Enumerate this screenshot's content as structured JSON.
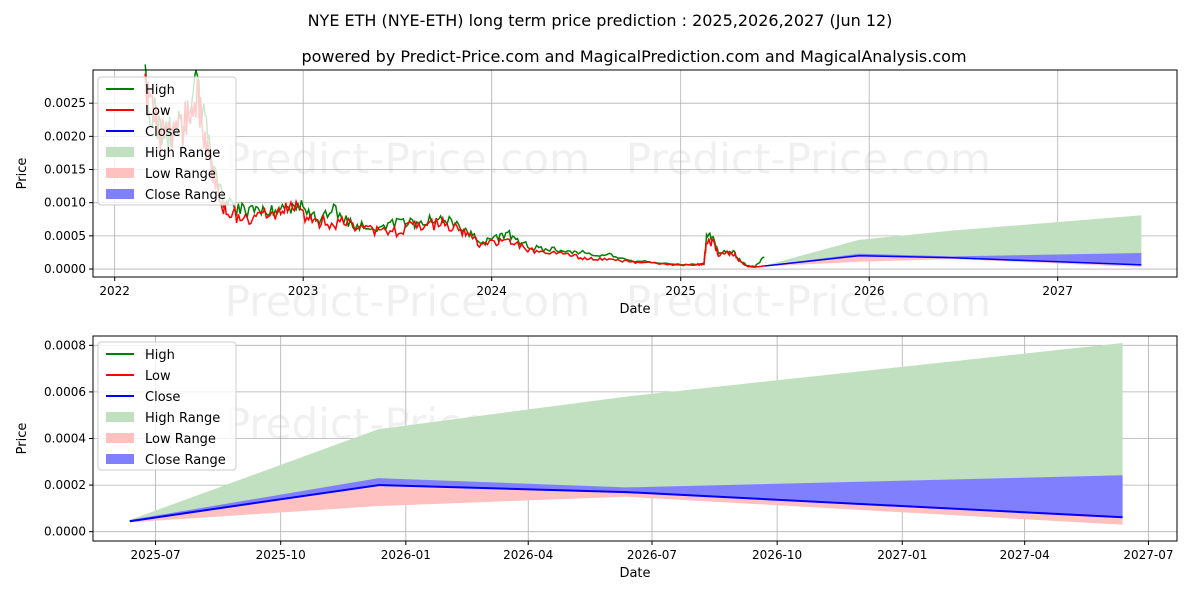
{
  "title": "NYE ETH (NYE-ETH) long term price prediction : 2025,2026,2027 (Jun 12)",
  "subtitle": "powered by Predict-Price.com and MagicalPrediction.com and MagicalAnalysis.com",
  "watermark": "Predict-Price.com",
  "colors": {
    "high": "#008000",
    "low": "#ff0000",
    "close": "#0000ff",
    "high_range": "#c0e0c0",
    "low_range": "#ffc0c0",
    "close_range": "#8080ff"
  },
  "legend": [
    "High",
    "Low",
    "Close",
    "High Range",
    "Low Range",
    "Close Range"
  ],
  "chart_data": [
    {
      "type": "line",
      "name": "history-and-forecast",
      "xlabel": "Date",
      "ylabel": "Price",
      "xticks": [
        "2022",
        "2023",
        "2024",
        "2025",
        "2026",
        "2027"
      ],
      "yticks": [
        "0.0000",
        "0.0005",
        "0.0010",
        "0.0015",
        "0.0020",
        "0.0025"
      ],
      "xlim": [
        "2021-11-20",
        "2027-08-20"
      ],
      "ylim": [
        -0.00012,
        0.003
      ],
      "legend_position": "upper-left",
      "history": {
        "dates": [
          "2022-03-01",
          "2022-03-10",
          "2022-03-25",
          "2022-04-10",
          "2022-04-25",
          "2022-05-10",
          "2022-05-25",
          "2022-06-10",
          "2022-06-20",
          "2022-07-05",
          "2022-07-20",
          "2022-08-05",
          "2022-08-25",
          "2022-09-15",
          "2022-10-05",
          "2022-10-25",
          "2022-11-15",
          "2022-12-05",
          "2022-12-25",
          "2023-01-15",
          "2023-02-05",
          "2023-03-01",
          "2023-03-25",
          "2023-04-20",
          "2023-05-15",
          "2023-06-10",
          "2023-07-05",
          "2023-08-01",
          "2023-08-25",
          "2023-09-20",
          "2023-10-15",
          "2023-11-05",
          "2023-11-25",
          "2023-12-15",
          "2024-01-10",
          "2024-02-01",
          "2024-02-20",
          "2024-03-15",
          "2024-04-10",
          "2024-05-05",
          "2024-06-01",
          "2024-06-25",
          "2024-07-20",
          "2024-08-15",
          "2024-09-10",
          "2024-10-05",
          "2024-11-01",
          "2024-12-01",
          "2025-01-01",
          "2025-02-01",
          "2025-02-15",
          "2025-02-20",
          "2025-03-05",
          "2025-03-15",
          "2025-04-01",
          "2025-04-15",
          "2025-04-25",
          "2025-05-10",
          "2025-05-25",
          "2025-06-12"
        ],
        "low": [
          0.0027,
          0.0024,
          0.0021,
          0.0019,
          0.002,
          0.0021,
          0.0023,
          0.0026,
          0.0022,
          0.0016,
          0.0011,
          0.00085,
          0.0008,
          0.00078,
          0.00082,
          0.0008,
          0.00085,
          0.00088,
          0.0009,
          0.00075,
          0.00072,
          0.0007,
          0.00068,
          0.0006,
          0.00058,
          0.00055,
          0.00058,
          0.00064,
          0.00068,
          0.00068,
          0.00066,
          0.00055,
          0.00045,
          0.00035,
          0.0004,
          0.00042,
          0.00038,
          0.00028,
          0.00025,
          0.00025,
          0.00022,
          0.00016,
          0.00015,
          0.00015,
          0.00012,
          0.0001,
          0.0001,
          7e-05,
          6e-05,
          6e-05,
          7e-05,
          0.00042,
          0.0004,
          0.00022,
          0.00024,
          0.00023,
          0.00012,
          4e-05,
          3e-05,
          4.5e-05
        ],
        "high": [
          0.0028,
          0.0025,
          0.0022,
          0.002,
          0.0021,
          0.0022,
          0.0024,
          0.0028,
          0.0024,
          0.0017,
          0.0012,
          0.00098,
          0.00092,
          0.00088,
          0.00095,
          0.0009,
          0.0009,
          0.00095,
          0.00096,
          0.0008,
          0.00078,
          0.00088,
          0.00072,
          0.00064,
          0.00062,
          0.00066,
          0.0007,
          0.0007,
          0.00072,
          0.00072,
          0.0007,
          0.0006,
          0.0005,
          0.0004,
          0.00046,
          0.00055,
          0.00042,
          0.00034,
          0.0003,
          0.0003,
          0.00026,
          0.00026,
          0.00018,
          0.00024,
          0.00015,
          0.00012,
          0.00011,
          8e-05,
          7e-05,
          7e-05,
          8e-05,
          0.00052,
          0.00044,
          0.00025,
          0.00026,
          0.00025,
          0.00014,
          5e-05,
          4e-05,
          0.00018
        ]
      }
    },
    {
      "type": "area",
      "name": "forecast",
      "xlabel": "Date",
      "ylabel": "Price",
      "xticks": [
        "2025-07",
        "2025-10",
        "2026-01",
        "2026-04",
        "2026-07",
        "2026-10",
        "2027-01",
        "2027-04",
        "2027-07"
      ],
      "yticks": [
        "0.0000",
        "0.0002",
        "0.0004",
        "0.0006",
        "0.0008"
      ],
      "xlim": [
        "2025-05-16",
        "2027-07-22"
      ],
      "ylim": [
        -4e-05,
        0.00084
      ],
      "legend_position": "upper-left",
      "dates": [
        "2025-06-12",
        "2025-12-12",
        "2026-06-12",
        "2027-06-12"
      ],
      "close": [
        4.5e-05,
        0.0002,
        0.00017,
        6.2e-05
      ],
      "high_range": [
        5e-05,
        0.00044,
        0.00058,
        0.00081
      ],
      "close_range_top": [
        5e-05,
        0.00023,
        0.00019,
        0.000242
      ],
      "low_range": [
        4e-05,
        0.00011,
        0.00015,
        3e-05
      ]
    }
  ]
}
